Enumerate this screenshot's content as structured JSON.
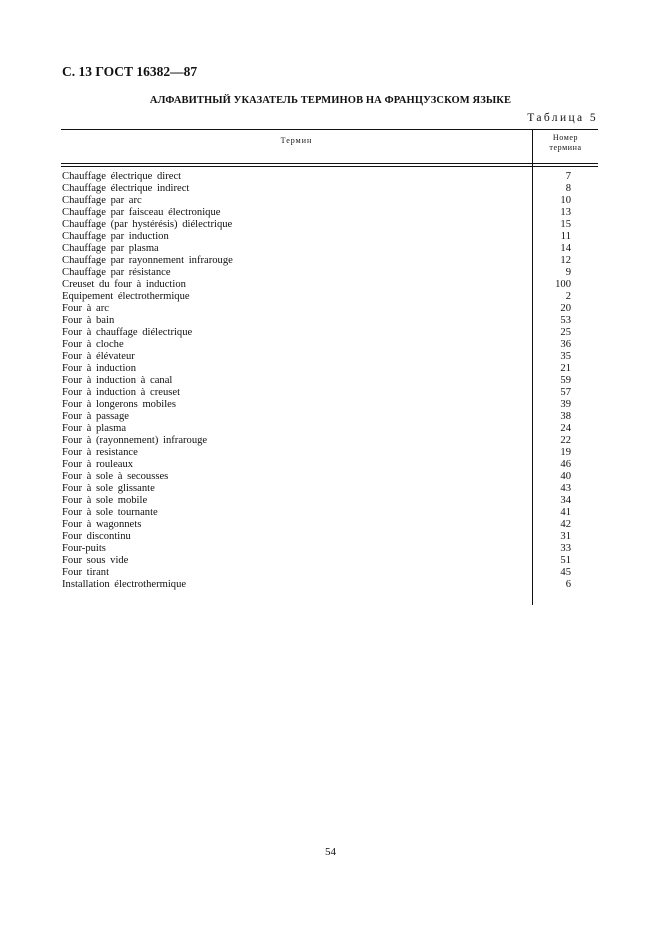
{
  "header": "С. 13 ГОСТ 16382—87",
  "title": "АЛФАВИТНЫЙ УКАЗАТЕЛЬ ТЕРМИНОВ НА ФРАНЦУЗСКОМ ЯЗЫКЕ",
  "table_label": "Таблица 5",
  "columns": {
    "term": "Термин",
    "number_line1": "Номер",
    "number_line2": "термина"
  },
  "rows": [
    {
      "term": "Chauffage électrique direct",
      "num": "7"
    },
    {
      "term": "Chauffage électrique indirect",
      "num": "8"
    },
    {
      "term": "Chauffage par arc",
      "num": "10"
    },
    {
      "term": "Chauffage par faisceau électronique",
      "num": "13"
    },
    {
      "term": "Chauffage (par hystérésis) diélectrique",
      "num": "15"
    },
    {
      "term": "Chauffage par induction",
      "num": "11"
    },
    {
      "term": "Chauffage par plasma",
      "num": "14"
    },
    {
      "term": "Chauffage par rayonnement infrarouge",
      "num": "12"
    },
    {
      "term": "Chauffage par résistance",
      "num": "9"
    },
    {
      "term": "Creuset du four à induction",
      "num": "100"
    },
    {
      "term": "Equipement électrothermique",
      "num": "2"
    },
    {
      "term": "Four à arc",
      "num": "20"
    },
    {
      "term": "Four à bain",
      "num": "53"
    },
    {
      "term": "Four à chauffage diélectrique",
      "num": "25"
    },
    {
      "term": "Four à cloche",
      "num": "36"
    },
    {
      "term": "Four à élévateur",
      "num": "35"
    },
    {
      "term": "Four à induction",
      "num": "21"
    },
    {
      "term": "Four à induction à canal",
      "num": "59"
    },
    {
      "term": "Four à induction à creuset",
      "num": "57"
    },
    {
      "term": "Four à longerons mobiles",
      "num": "39"
    },
    {
      "term": "Four à passage",
      "num": "38"
    },
    {
      "term": "Four à plasma",
      "num": "24"
    },
    {
      "term": "Four à (rayonnement) infrarouge",
      "num": "22"
    },
    {
      "term": "Four à resistance",
      "num": "19"
    },
    {
      "term": "Four à rouleaux",
      "num": "46"
    },
    {
      "term": "Four à sole à secousses",
      "num": "40"
    },
    {
      "term": "Four à sole glissante",
      "num": "43"
    },
    {
      "term": "Four à sole mobile",
      "num": "34"
    },
    {
      "term": "Four à sole tournante",
      "num": "41"
    },
    {
      "term": "Four à wagonnets",
      "num": "42"
    },
    {
      "term": "Four discontinu",
      "num": "31"
    },
    {
      "term": "Four-puits",
      "num": "33"
    },
    {
      "term": "Four sous vide",
      "num": "51"
    },
    {
      "term": "Four tirant",
      "num": "45"
    },
    {
      "term": "Installation électrothermique",
      "num": "6"
    }
  ],
  "page_number": "54"
}
